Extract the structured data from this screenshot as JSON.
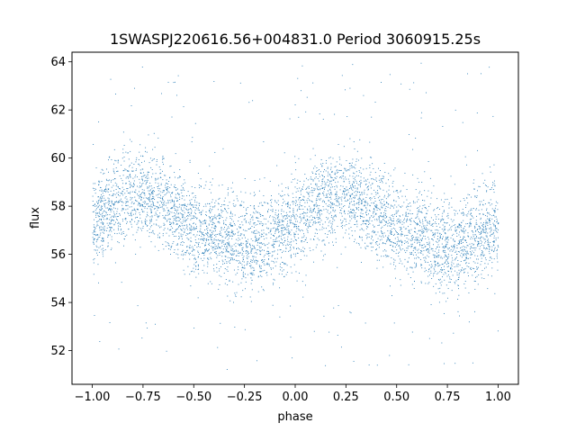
{
  "chart_data": {
    "type": "scatter",
    "title": "1SWASPJ220616.56+004831.0 Period 3060915.25s",
    "xlabel": "phase",
    "ylabel": "flux",
    "xlim": [
      -1.1,
      1.1
    ],
    "ylim": [
      50.6,
      64.4
    ],
    "xticks": [
      -1.0,
      -0.75,
      -0.5,
      -0.25,
      0.0,
      0.25,
      0.5,
      0.75,
      1.0
    ],
    "xtick_labels": [
      "−1.00",
      "−0.75",
      "−0.50",
      "−0.25",
      "0.00",
      "0.25",
      "0.50",
      "0.75",
      "1.00"
    ],
    "yticks": [
      52,
      54,
      56,
      58,
      60,
      62,
      64
    ],
    "ytick_labels": [
      "52",
      "54",
      "56",
      "58",
      "60",
      "62",
      "64"
    ],
    "grid": false,
    "marker_color": "#1f77b4",
    "series": [
      {
        "phase": [
          -1.0,
          -0.9,
          -0.8,
          -0.7,
          -0.6,
          -0.5,
          -0.4,
          -0.3,
          -0.2,
          -0.1,
          0.0,
          0.1,
          0.2,
          0.3,
          0.4,
          0.5,
          0.6,
          0.7,
          0.8,
          0.9,
          1.0
        ],
        "flux_mean": [
          57.3,
          58.2,
          58.5,
          58.4,
          57.8,
          57.1,
          56.9,
          56.5,
          56.4,
          56.8,
          57.3,
          58.2,
          58.5,
          58.4,
          57.8,
          57.1,
          56.9,
          56.5,
          56.4,
          56.8,
          57.3
        ],
        "flux_spread": 1.1
      }
    ]
  }
}
